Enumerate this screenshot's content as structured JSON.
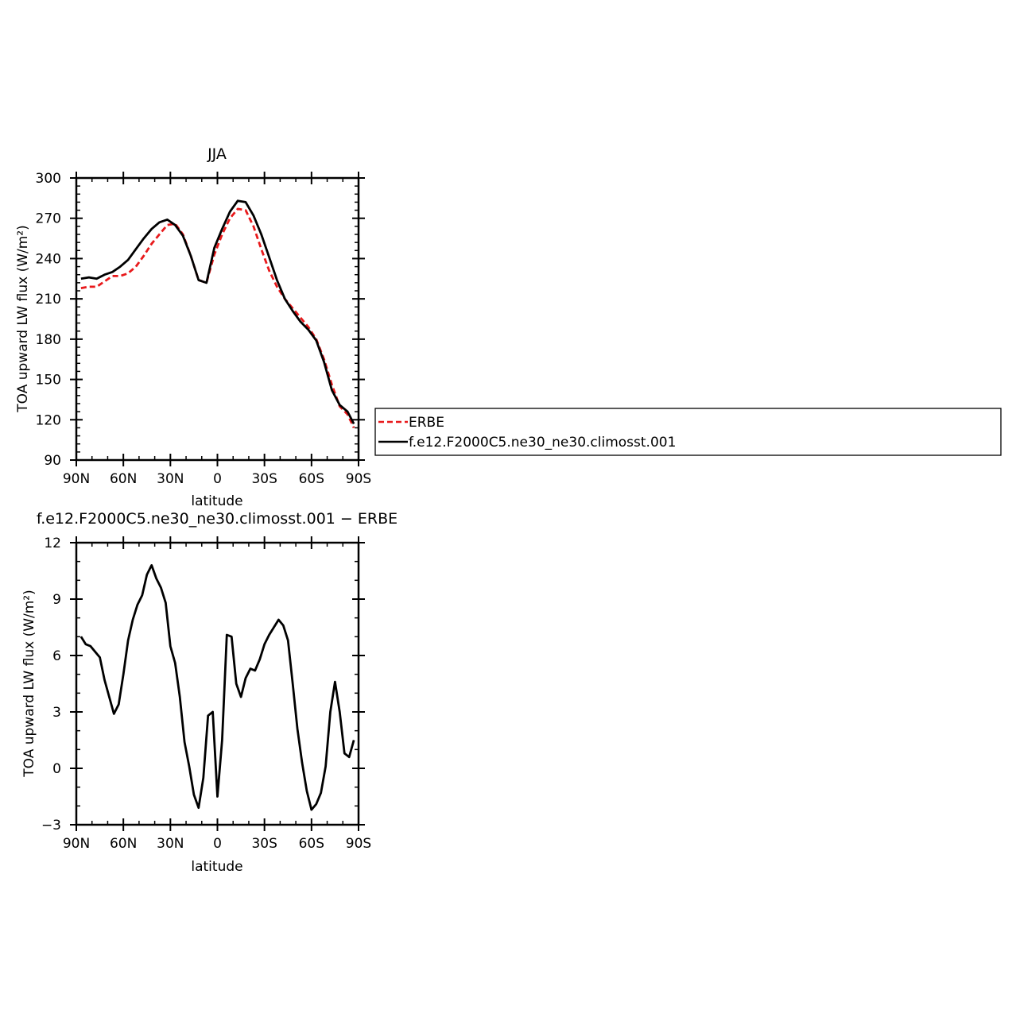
{
  "chart_data": [
    {
      "type": "line",
      "title": "JJA",
      "xlabel": "latitude",
      "ylabel": "TOA upward LW flux (W/m²)",
      "xlim": [
        90,
        -90
      ],
      "ylim": [
        90,
        300
      ],
      "xticks": [
        90,
        60,
        30,
        0,
        -30,
        -60,
        -90
      ],
      "xtick_labels": [
        "90N",
        "60N",
        "30N",
        "0",
        "30S",
        "60S",
        "90S"
      ],
      "yticks": [
        90,
        120,
        150,
        180,
        210,
        240,
        270,
        300
      ],
      "ytick_labels": [
        "90",
        "120",
        "150",
        "180",
        "210",
        "240",
        "270",
        "300"
      ],
      "grid": false,
      "legend_position": "right",
      "series": [
        {
          "name": "ERBE",
          "color": "#e8191b",
          "dash": "dashed",
          "x": [
            87,
            82,
            77,
            72,
            67,
            62,
            57,
            52,
            47,
            42,
            37,
            32,
            27,
            22,
            17,
            12,
            7,
            2,
            -3,
            -8,
            -13,
            -18,
            -23,
            -28,
            -33,
            -38,
            -43,
            -48,
            -53,
            -58,
            -63,
            -68,
            -73,
            -78,
            -83,
            -87
          ],
          "y": [
            218,
            219,
            219,
            223,
            227,
            227,
            229,
            234,
            242,
            251,
            258,
            265,
            266,
            258,
            242,
            224,
            222,
            243,
            258,
            270,
            277,
            276,
            264,
            247,
            231,
            219,
            210,
            203,
            196,
            189,
            180,
            165,
            146,
            130,
            124,
            114
          ]
        },
        {
          "name": "f.e12.F2000C5.ne30_ne30.climosst.001",
          "color": "#000000",
          "dash": "solid",
          "x": [
            87,
            82,
            77,
            72,
            67,
            62,
            57,
            52,
            47,
            42,
            37,
            32,
            27,
            22,
            17,
            12,
            7,
            2,
            -3,
            -8,
            -13,
            -18,
            -23,
            -28,
            -33,
            -38,
            -43,
            -48,
            -53,
            -58,
            -63,
            -68,
            -73,
            -78,
            -83,
            -87
          ],
          "y": [
            225,
            226,
            225,
            228,
            230,
            234,
            239,
            247,
            255,
            262,
            267,
            269,
            265,
            257,
            242,
            224,
            222,
            248,
            262,
            275,
            283,
            282,
            272,
            258,
            241,
            224,
            210,
            201,
            193,
            187,
            179,
            163,
            142,
            131,
            126,
            117
          ]
        }
      ]
    },
    {
      "type": "line",
      "title": "f.e12.F2000C5.ne30_ne30.climosst.001 − ERBE",
      "xlabel": "latitude",
      "ylabel": "TOA upward LW flux (W/m²)",
      "xlim": [
        90,
        -90
      ],
      "ylim": [
        -3,
        12
      ],
      "xticks": [
        90,
        60,
        30,
        0,
        -30,
        -60,
        -90
      ],
      "xtick_labels": [
        "90N",
        "60N",
        "30N",
        "0",
        "30S",
        "60S",
        "90S"
      ],
      "yticks": [
        -3,
        0,
        3,
        6,
        9,
        12
      ],
      "ytick_labels": [
        "−3",
        "0",
        "3",
        "6",
        "9",
        "12"
      ],
      "grid": false,
      "series": [
        {
          "color": "#000000",
          "dash": "solid",
          "x": [
            87,
            84,
            81,
            78,
            75,
            72,
            69,
            66,
            63,
            60,
            57,
            54,
            51,
            48,
            45,
            42,
            39,
            36,
            33,
            30,
            27,
            24,
            21,
            18,
            15,
            12,
            9,
            6,
            3,
            0,
            -3,
            -6,
            -9,
            -12,
            -15,
            -18,
            -21,
            -24,
            -27,
            -30,
            -33,
            -36,
            -39,
            -42,
            -45,
            -48,
            -51,
            -54,
            -57,
            -60,
            -63,
            -66,
            -69,
            -72,
            -75,
            -78,
            -81,
            -84,
            -87
          ],
          "y": [
            7.0,
            6.6,
            6.5,
            6.2,
            5.9,
            4.7,
            3.8,
            2.9,
            3.4,
            5.0,
            6.8,
            7.9,
            8.7,
            9.2,
            10.3,
            10.8,
            10.1,
            9.6,
            8.8,
            6.5,
            5.6,
            3.8,
            1.4,
            0.1,
            -1.4,
            -2.1,
            -0.5,
            2.8,
            3.0,
            -1.5,
            1.5,
            7.1,
            7.0,
            4.5,
            3.8,
            4.8,
            5.3,
            5.2,
            5.8,
            6.6,
            7.1,
            7.5,
            7.9,
            7.6,
            6.8,
            4.5,
            2.1,
            0.3,
            -1.2,
            -2.2,
            -1.9,
            -1.3,
            0.1,
            3.0,
            4.6,
            3.0,
            0.8,
            0.6,
            1.5
          ]
        }
      ]
    }
  ]
}
